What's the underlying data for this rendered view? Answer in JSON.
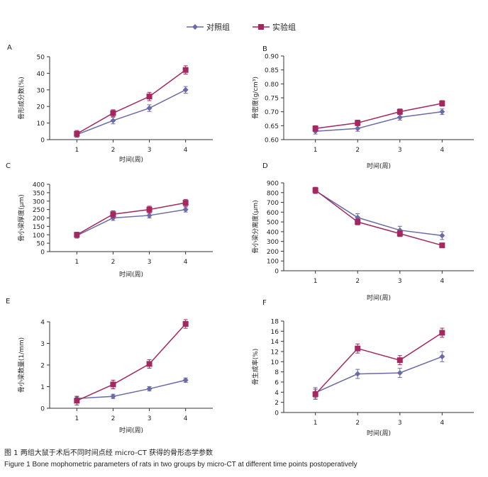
{
  "legend": {
    "control_label": "对照组",
    "experiment_label": "实验组"
  },
  "colors": {
    "control": "#6a6aa8",
    "experiment": "#a3285f",
    "axis": "#333333"
  },
  "captions": {
    "cn": "图 1   两组大鼠于术后不同时间点经 micro-CT 获得的骨形态学参数",
    "en": "Figure 1   Bone mophometric parameters of rats in two groups by micro-CT at different time points postoperatively"
  },
  "chart_data": [
    {
      "panel": "A",
      "type": "line",
      "xlabel": "时间(周)",
      "ylabel": "骨形成分数(%)",
      "x": [
        1,
        2,
        3,
        4
      ],
      "ylim": [
        0,
        50
      ],
      "yticks": [
        0,
        10,
        20,
        30,
        40,
        50
      ],
      "decimals": 0,
      "series": [
        {
          "name": "对照组",
          "values": [
            3,
            11.5,
            19,
            30
          ],
          "err": [
            1.5,
            2,
            2,
            2
          ]
        },
        {
          "name": "实验组",
          "values": [
            3.5,
            16,
            26,
            42
          ],
          "err": [
            2,
            2,
            2.5,
            2.5
          ]
        }
      ]
    },
    {
      "panel": "B",
      "type": "line",
      "xlabel": "时间(周)",
      "ylabel": "骨密度(g/cm³)",
      "x": [
        1,
        2,
        3,
        4
      ],
      "ylim": [
        0.6,
        0.9
      ],
      "yticks": [
        0.6,
        0.65,
        0.7,
        0.75,
        0.8,
        0.85,
        0.9
      ],
      "decimals": 2,
      "series": [
        {
          "name": "对照组",
          "values": [
            0.63,
            0.64,
            0.68,
            0.7
          ],
          "err": [
            0.01,
            0.01,
            0.01,
            0.01
          ]
        },
        {
          "name": "实验组",
          "values": [
            0.64,
            0.66,
            0.7,
            0.73
          ],
          "err": [
            0.01,
            0.01,
            0.01,
            0.01
          ]
        }
      ]
    },
    {
      "panel": "C",
      "type": "line",
      "xlabel": "时间(周)",
      "ylabel": "骨小梁厚度(μm)",
      "x": [
        1,
        2,
        3,
        4
      ],
      "ylim": [
        0,
        400
      ],
      "yticks": [
        0,
        50,
        100,
        150,
        200,
        250,
        300,
        350,
        400
      ],
      "decimals": 0,
      "series": [
        {
          "name": "对照组",
          "values": [
            95,
            200,
            215,
            250
          ],
          "err": [
            15,
            15,
            15,
            15
          ]
        },
        {
          "name": "实验组",
          "values": [
            100,
            222,
            250,
            290
          ],
          "err": [
            15,
            20,
            20,
            20
          ]
        }
      ]
    },
    {
      "panel": "D",
      "type": "line",
      "xlabel": "时间(周)",
      "ylabel": "骨小梁分离度(μm)",
      "x": [
        1,
        2,
        3,
        4
      ],
      "ylim": [
        0,
        900
      ],
      "yticks": [
        0,
        100,
        200,
        300,
        400,
        500,
        600,
        700,
        800,
        900
      ],
      "decimals": 0,
      "series": [
        {
          "name": "对照组",
          "values": [
            820,
            545,
            415,
            360
          ],
          "err": [
            30,
            40,
            40,
            40
          ]
        },
        {
          "name": "实验组",
          "values": [
            825,
            500,
            380,
            260
          ],
          "err": [
            30,
            30,
            30,
            20
          ]
        }
      ]
    },
    {
      "panel": "E",
      "type": "line",
      "xlabel": "时间(周)",
      "ylabel": "骨小梁数量(1/mm)",
      "x": [
        1,
        2,
        3,
        4
      ],
      "ylim": [
        0,
        4
      ],
      "yticks": [
        0,
        1,
        2,
        3,
        4
      ],
      "decimals": 0,
      "series": [
        {
          "name": "对照组",
          "values": [
            0.45,
            0.55,
            0.9,
            1.3
          ],
          "err": [
            0.1,
            0.1,
            0.1,
            0.1
          ]
        },
        {
          "name": "实验组",
          "values": [
            0.35,
            1.1,
            2.05,
            3.9
          ],
          "err": [
            0.2,
            0.2,
            0.2,
            0.2
          ]
        }
      ]
    },
    {
      "panel": "F",
      "type": "line",
      "xlabel": "时间(周)",
      "ylabel": "骨生成率(%)",
      "x": [
        1,
        2,
        3,
        4
      ],
      "ylim": [
        0,
        18
      ],
      "yticks": [
        0,
        2,
        4,
        6,
        8,
        10,
        12,
        14,
        16,
        18
      ],
      "decimals": 0,
      "series": [
        {
          "name": "对照组",
          "values": [
            3.9,
            7.6,
            7.8,
            11
          ],
          "err": [
            1,
            0.9,
            0.9,
            1
          ]
        },
        {
          "name": "实验组",
          "values": [
            3.6,
            12.6,
            10.3,
            15.7
          ],
          "err": [
            1,
            0.9,
            0.9,
            0.9
          ]
        }
      ]
    }
  ]
}
